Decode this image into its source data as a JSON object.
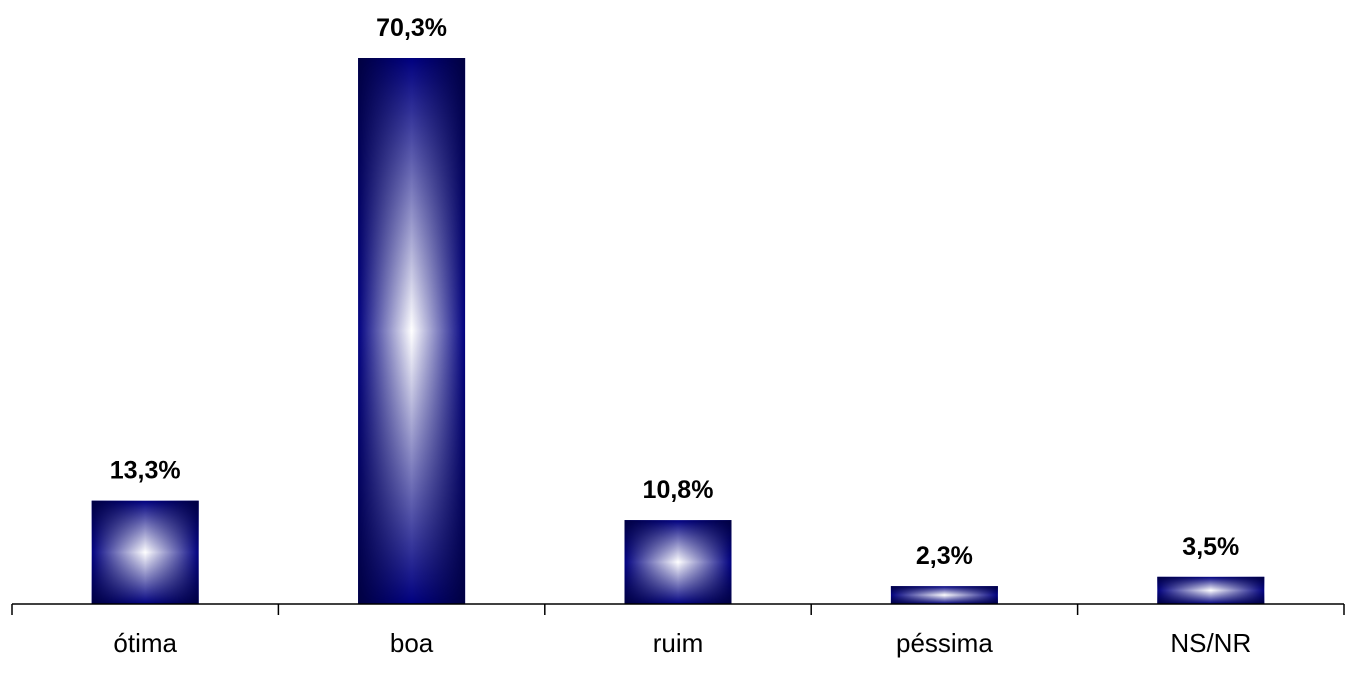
{
  "chart_data": {
    "type": "bar",
    "categories": [
      "ótima",
      "boa",
      "ruim",
      "péssima",
      "NS/NR"
    ],
    "values": [
      13.3,
      70.3,
      10.8,
      2.3,
      3.5
    ],
    "value_labels": [
      "13,3%",
      "70,3%",
      "10,8%",
      "2,3%",
      "3,5%"
    ],
    "title": "",
    "xlabel": "",
    "ylabel": "",
    "ylim": [
      0,
      70.3
    ],
    "grid": false,
    "legend": "none",
    "colors": {
      "bar_edge": "#000080",
      "bar_center": "#ffffff",
      "axis": "#000000"
    }
  }
}
